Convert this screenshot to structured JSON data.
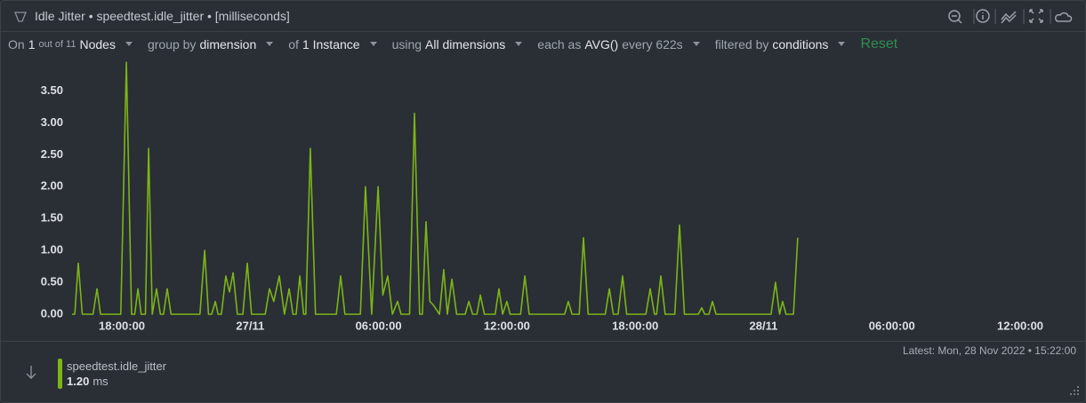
{
  "header": {
    "title": "Idle Jitter • speedtest.idle_jitter • [milliseconds]"
  },
  "toolbar": {
    "on": "On",
    "nodes_count": "1",
    "nodes_total": "out of 11",
    "nodes": "Nodes",
    "group_by": "group by",
    "dimension": "dimension",
    "of": "of",
    "instance": "1 Instance",
    "using": "using",
    "dimensions": "All dimensions",
    "each_as": "each as",
    "aggregation": "AVG()",
    "every": "every 622s",
    "filtered_by": "filtered by",
    "conditions": "conditions",
    "reset": "Reset"
  },
  "chart_data": {
    "type": "line",
    "x": [
      15.67,
      15.8,
      15.96,
      16.15,
      16.65,
      16.84,
      17.0,
      17.95,
      18.21,
      18.45,
      18.6,
      18.75,
      18.9,
      19.1,
      19.25,
      19.42,
      19.62,
      19.8,
      19.95,
      20.12,
      20.3,
      21.65,
      21.87,
      22.05,
      22.2,
      22.37,
      22.5,
      22.65,
      22.86,
      23.03,
      23.2,
      23.4,
      23.66,
      23.86,
      24.06,
      24.7,
      24.9,
      25.1,
      25.36,
      25.6,
      25.82,
      26.0,
      26.15,
      26.32,
      26.5,
      26.6,
      26.81,
      27.05,
      28.03,
      28.23,
      28.43,
      29.15,
      29.39,
      29.68,
      29.98,
      30.2,
      30.43,
      30.65,
      30.89,
      31.05,
      31.45,
      31.68,
      31.92,
      32.05,
      32.22,
      32.4,
      32.55,
      32.85,
      33.05,
      33.22,
      33.43,
      33.65,
      34.05,
      34.22,
      34.4,
      34.6,
      34.76,
      34.95,
      35.45,
      35.63,
      35.8,
      36.0,
      36.15,
      36.64,
      36.84,
      37.04,
      38.7,
      38.87,
      39.05,
      39.38,
      39.58,
      39.8,
      40.6,
      40.79,
      40.98,
      41.2,
      41.41,
      41.6,
      42.5,
      42.7,
      42.9,
      43.0,
      43.2,
      43.4,
      43.85,
      44.07,
      44.3,
      44.95,
      45.11,
      45.25,
      45.45,
      45.61,
      45.78,
      48.35,
      48.56,
      48.75,
      48.89,
      49.05,
      49.4,
      49.6
    ],
    "series": [
      {
        "name": "speedtest.idle_jitter",
        "color": "#7cb518",
        "values": [
          0,
          0,
          0.8,
          0,
          0,
          0.4,
          0,
          0,
          3.95,
          0,
          0,
          0.4,
          0,
          0,
          2.6,
          0,
          0.4,
          0,
          0,
          0.4,
          0,
          0,
          1.0,
          0,
          0,
          0.2,
          0,
          0,
          0.6,
          0.35,
          0.65,
          0,
          0,
          0.8,
          0,
          0,
          0.4,
          0.2,
          0.6,
          0,
          0.4,
          0,
          0,
          0.6,
          0,
          0,
          2.6,
          0,
          0,
          0.6,
          0,
          0,
          2.0,
          0,
          2.0,
          0.3,
          0.6,
          0,
          0.2,
          0,
          0,
          3.15,
          0,
          0,
          1.45,
          0.2,
          0.15,
          0,
          0.7,
          0,
          0.55,
          0,
          0,
          0.2,
          0,
          0,
          0.3,
          0,
          0,
          0.4,
          0,
          0.2,
          0,
          0,
          0.6,
          0,
          0,
          0.2,
          0,
          0,
          1.2,
          0,
          0,
          0.4,
          0,
          0,
          0.6,
          0,
          0,
          0.4,
          0,
          0,
          0.6,
          0,
          0,
          1.4,
          0,
          0,
          0.1,
          0,
          0,
          0.2,
          0,
          0,
          0.5,
          0,
          0.2,
          0,
          0,
          1.2
        ]
      }
    ],
    "xlim": [
      15.67,
      62.66
    ],
    "xticks": [
      {
        "value": 18,
        "label": "18:00:00"
      },
      {
        "value": 24,
        "label": "27/11"
      },
      {
        "value": 30,
        "label": "06:00:00"
      },
      {
        "value": 36,
        "label": "12:00:00"
      },
      {
        "value": 42,
        "label": "18:00:00"
      },
      {
        "value": 48,
        "label": "28/11"
      },
      {
        "value": 54,
        "label": "06:00:00"
      },
      {
        "value": 60,
        "label": "12:00:00"
      }
    ],
    "ylim": [
      0,
      4.05
    ],
    "yticks": [
      {
        "value": 0,
        "label": "0.00"
      },
      {
        "value": 0.5,
        "label": "0.50"
      },
      {
        "value": 1,
        "label": "1.00"
      },
      {
        "value": 1.5,
        "label": "1.50"
      },
      {
        "value": 2,
        "label": "2.00"
      },
      {
        "value": 2.5,
        "label": "2.50"
      },
      {
        "value": 3,
        "label": "3.00"
      },
      {
        "value": 3.5,
        "label": "3.50"
      }
    ],
    "grid": false
  },
  "footer": {
    "latest": "Latest:  Mon, 28 Nov 2022 • 15:22:00",
    "legend_value": "1.20",
    "legend_unit": "ms"
  }
}
